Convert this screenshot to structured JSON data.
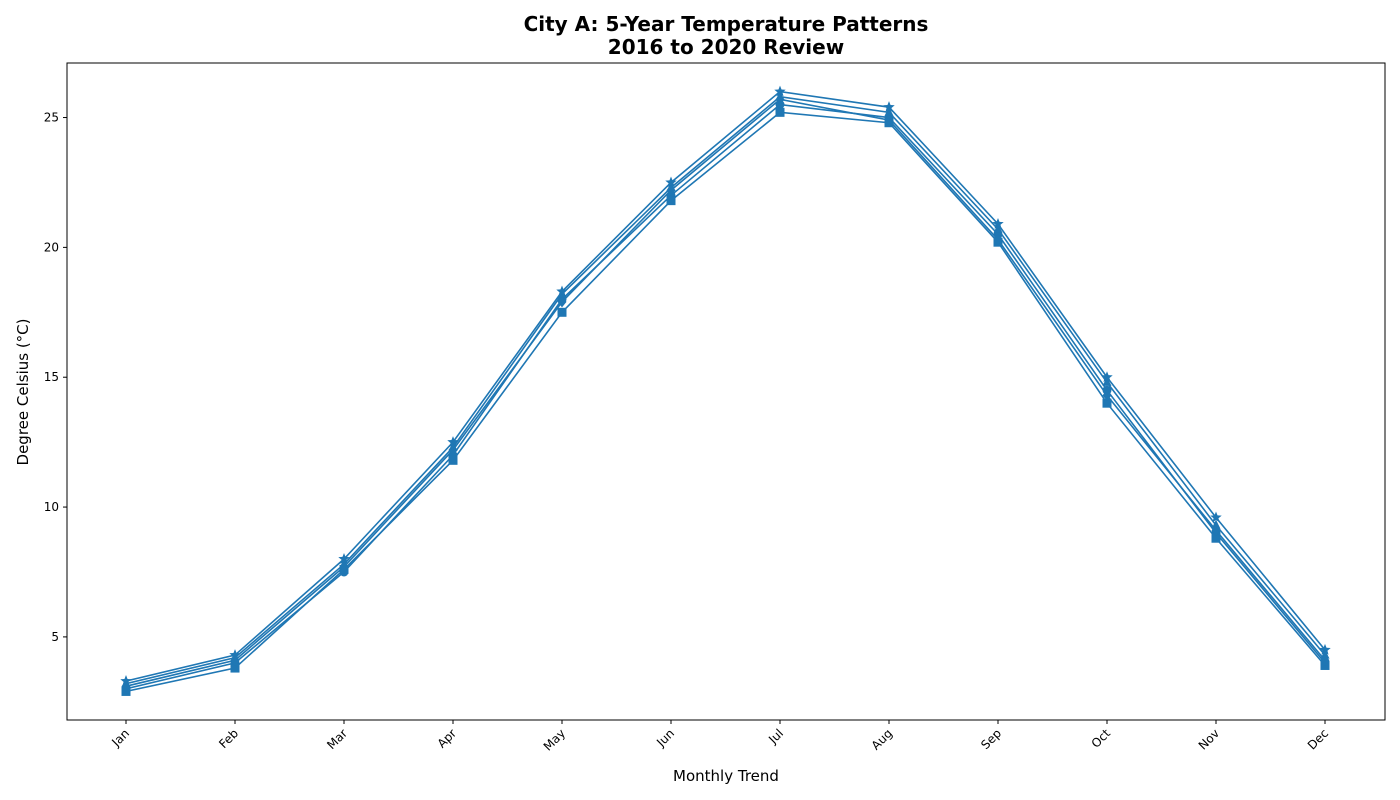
{
  "chart_data": {
    "type": "line",
    "title_line1": "City A: 5-Year Temperature Patterns",
    "title_line2": "2016 to 2020 Review",
    "xlabel": "Monthly Trend",
    "ylabel": "Degree Celsius (°C)",
    "categories": [
      "Jan",
      "Feb",
      "Mar",
      "Apr",
      "May",
      "Jun",
      "Jul",
      "Aug",
      "Sep",
      "Oct",
      "Nov",
      "Dec"
    ],
    "ylim": [
      1.8,
      27.1
    ],
    "yticks": [
      5,
      10,
      15,
      20,
      25
    ],
    "grid": false,
    "legend": "none",
    "series_color": "#1f77b4",
    "series": [
      {
        "marker": "circle",
        "values": [
          3.0,
          4.0,
          7.5,
          12.0,
          18.0,
          22.0,
          25.5,
          25.0,
          20.5,
          14.5,
          9.0,
          4.0
        ]
      },
      {
        "marker": "triangle",
        "values": [
          3.2,
          4.2,
          7.8,
          12.3,
          18.2,
          22.3,
          25.8,
          25.2,
          20.7,
          14.8,
          9.3,
          4.3
        ]
      },
      {
        "marker": "square",
        "values": [
          2.9,
          3.8,
          7.6,
          11.8,
          17.5,
          21.8,
          25.2,
          24.8,
          20.2,
          14.0,
          8.8,
          3.9
        ]
      },
      {
        "marker": "diamond",
        "values": [
          3.1,
          4.1,
          7.7,
          12.2,
          17.9,
          22.2,
          25.7,
          24.9,
          20.3,
          14.3,
          9.1,
          4.1
        ]
      },
      {
        "marker": "star",
        "values": [
          3.3,
          4.3,
          8.0,
          12.5,
          18.3,
          22.5,
          26.0,
          25.4,
          20.9,
          15.0,
          9.6,
          4.5
        ]
      }
    ]
  }
}
